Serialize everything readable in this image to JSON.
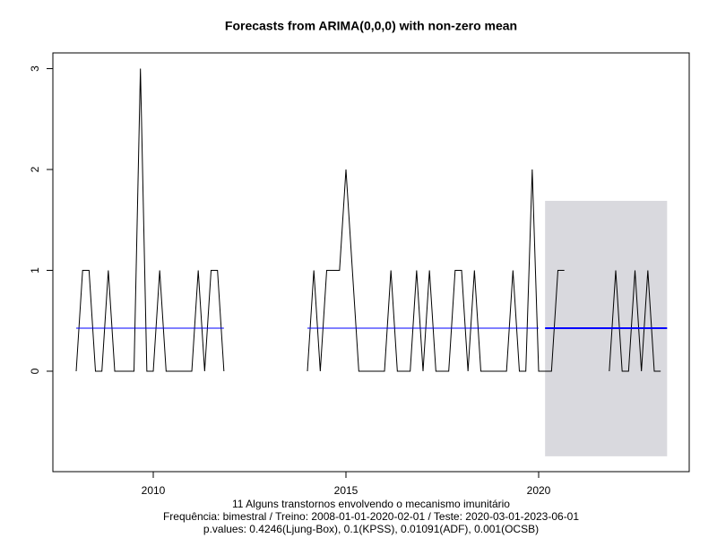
{
  "chart_data": {
    "type": "line",
    "title": "Forecasts from ARIMA(0,0,0) with non-zero mean",
    "xlabel": [
      "11 Alguns transtornos envolvendo o mecanismo imunitário",
      "Frequência: bimestral / Treino: 2008-01-01-2020-02-01 / Teste: 2020-03-01-2023-06-01",
      "p.values: 0.4246(Ljung-Box), 0.1(KPSS), 0.01091(ADF), 0.001(OCSB)"
    ],
    "x": [
      2008,
      2008.1667,
      2008.3333,
      2008.5,
      2008.6667,
      2008.8333,
      2009,
      2009.1667,
      2009.3333,
      2009.5,
      2009.6667,
      2009.8333,
      2010,
      2010.1667,
      2010.3333,
      2010.5,
      2010.6667,
      2010.8333,
      2011,
      2011.1667,
      2011.3333,
      2011.5,
      2011.6667,
      2011.8333,
      2012,
      2012.1667,
      2012.3333,
      2012.5,
      2012.6667,
      2012.8333,
      2013,
      2013.1667,
      2013.3333,
      2013.5,
      2013.6667,
      2013.8333,
      2014,
      2014.1667,
      2014.3333,
      2014.5,
      2014.6667,
      2014.8333,
      2015,
      2015.1667,
      2015.3333,
      2015.5,
      2015.6667,
      2015.8333,
      2016,
      2016.1667,
      2016.3333,
      2016.5,
      2016.6667,
      2016.8333,
      2017,
      2017.1667,
      2017.3333,
      2017.5,
      2017.6667,
      2017.8333,
      2018,
      2018.1667,
      2018.3333,
      2018.5,
      2018.6667,
      2018.8333,
      2019,
      2019.1667,
      2019.3333,
      2019.5,
      2019.6667,
      2019.8333,
      2020,
      2020.1667,
      2020.3333,
      2020.5,
      2020.6667,
      2020.8333,
      2021,
      2021.1667,
      2021.3333,
      2021.5,
      2021.6667,
      2021.8333,
      2022,
      2022.1667,
      2022.3333,
      2022.5,
      2022.6667,
      2022.8333,
      2023,
      2023.1667,
      2023.3333
    ],
    "series": [
      {
        "color": "#000000",
        "values": [
          0,
          1,
          1,
          0,
          0,
          1,
          0,
          0,
          0,
          0,
          3,
          0,
          0,
          1,
          0,
          0,
          0,
          0,
          0,
          1,
          0,
          1,
          1,
          0,
          null,
          null,
          null,
          null,
          null,
          null,
          null,
          null,
          null,
          null,
          null,
          null,
          0,
          1,
          0,
          1,
          1,
          1,
          2,
          1,
          0,
          0,
          0,
          0,
          0,
          1,
          0,
          0,
          0,
          1,
          0,
          1,
          0,
          0,
          0,
          1,
          1,
          0,
          1,
          0,
          0,
          0,
          0,
          0,
          1,
          0,
          0,
          2,
          0,
          0,
          0,
          1,
          1,
          null,
          null,
          null,
          null,
          null,
          null,
          0,
          1,
          0,
          0,
          1,
          0,
          1,
          0,
          0,
          null
        ]
      },
      {
        "color": "#0000ff",
        "values": [
          0.427,
          0.427,
          0.427,
          0.427,
          0.427,
          0.427,
          0.427,
          0.427,
          0.427,
          0.427,
          0.427,
          0.427,
          0.427,
          0.427,
          0.427,
          0.427,
          0.427,
          0.427,
          0.427,
          0.427,
          0.427,
          0.427,
          0.427,
          0.427,
          null,
          null,
          null,
          null,
          null,
          null,
          null,
          null,
          null,
          null,
          null,
          null,
          0.427,
          0.427,
          0.427,
          0.427,
          0.427,
          0.427,
          0.427,
          0.427,
          0.427,
          0.427,
          0.427,
          0.427,
          0.427,
          0.427,
          0.427,
          0.427,
          0.427,
          0.427,
          0.427,
          0.427,
          0.427,
          0.427,
          0.427,
          0.427,
          0.427,
          0.427,
          0.427,
          0.427,
          0.427,
          0.427,
          0.427,
          0.427,
          0.427,
          0.427,
          0.427,
          0.427,
          0.427,
          null,
          null,
          null,
          null,
          null,
          null,
          null,
          null,
          null,
          null,
          null,
          null,
          null,
          null,
          null,
          null,
          null,
          null,
          null,
          null
        ]
      }
    ],
    "forecast": {
      "color": "#0000ff",
      "interval_color": "#d9d9de",
      "x": [
        2020.1667,
        2023.3333
      ],
      "values": [
        0.427,
        0.427
      ],
      "lower": [
        -0.844,
        -0.844
      ],
      "upper": [
        1.689,
        1.689
      ]
    },
    "xlim": [
      2007.395,
      2023.907
    ],
    "ylim": [
      -0.996,
      3.156
    ],
    "xticks": [
      2010,
      2015,
      2020
    ],
    "yticks": [
      0,
      1,
      2,
      3
    ]
  }
}
